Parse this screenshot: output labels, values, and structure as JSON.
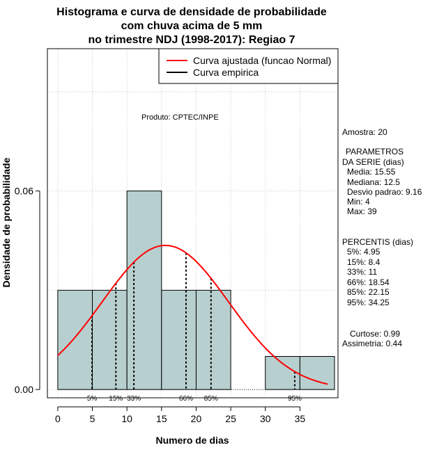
{
  "chart_data": {
    "type": "bar",
    "title_lines": [
      "Histograma e curva de densidade de probabilidade",
      "com chuva acima de 5 mm",
      "no trimestre NDJ (1998-2017): Regiao 7"
    ],
    "xlabel": "Numero de dias",
    "ylabel": "Densidade de probabilidade",
    "xlim": [
      -1.5,
      40.5
    ],
    "ylim": [
      -0.0025,
      0.103
    ],
    "x_ticks": [
      "0",
      "5",
      "10",
      "15",
      "20",
      "25",
      "30",
      "35"
    ],
    "x_tick_values": [
      0,
      5,
      10,
      15,
      20,
      25,
      30,
      35
    ],
    "y_ticks": [
      "0.00",
      "0.06"
    ],
    "y_tick_values": [
      0.0,
      0.06
    ],
    "grid": true,
    "bar_color": "#b7cfcf",
    "bins": [
      {
        "start": 0,
        "end": 5,
        "density": 0.03
      },
      {
        "start": 5,
        "end": 10,
        "density": 0.03
      },
      {
        "start": 10,
        "end": 15,
        "density": 0.06
      },
      {
        "start": 15,
        "end": 20,
        "density": 0.03
      },
      {
        "start": 20,
        "end": 25,
        "density": 0.03
      },
      {
        "start": 25,
        "end": 30,
        "density": 0.0
      },
      {
        "start": 30,
        "end": 35,
        "density": 0.01
      },
      {
        "start": 35,
        "end": 40,
        "density": 0.01
      }
    ],
    "normal_curve": {
      "name": "Curva ajustada (funcao Normal)",
      "color": "#ff0000",
      "mean": 15.55,
      "sd": 9.16,
      "x_from": 0,
      "x_to": 39
    },
    "empirical_curve": {
      "name": "Curva empirica",
      "color": "#000000"
    },
    "legend_position": "top-right",
    "percentile_lines": [
      {
        "label": "5%",
        "x": 4.95
      },
      {
        "label": "15%",
        "x": 8.4
      },
      {
        "label": "33%",
        "x": 11
      },
      {
        "label": "66%",
        "x": 18.54
      },
      {
        "label": "85%",
        "x": 22.15
      },
      {
        "label": "95%",
        "x": 34.25
      }
    ],
    "annotation": "Produto: CPTEC/INPE"
  },
  "side_panel": {
    "sample": "Amostra: 20",
    "params_header_1": "PARAMETROS",
    "params_header_2": "DA SERIE (dias)",
    "media": "Media: 15.55",
    "mediana": "Mediana: 12.5",
    "desvio": "Desvio padrao: 9.16",
    "min": "Min: 4",
    "max": "Max: 39",
    "percentis_header": "PERCENTIS (dias)",
    "p5": "5%: 4.95",
    "p15": "15%: 8.4",
    "p33": "33%: 11",
    "p66": "66%: 18.54",
    "p85": "85%: 22.15",
    "p95": "95%: 34.25",
    "curtose": "Curtose: 0.99",
    "assimetria": "Assimetria: 0.44"
  }
}
